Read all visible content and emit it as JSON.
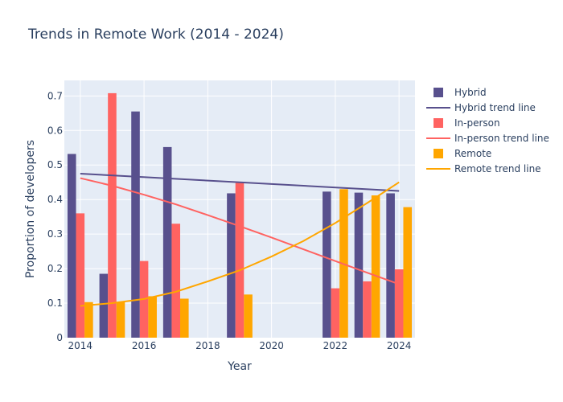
{
  "chart_data": {
    "type": "bar",
    "title": "Trends in Remote Work (2014 - 2024)",
    "xlabel": "Year",
    "ylabel": "Proportion of developers",
    "x": [
      2014,
      2015,
      2016,
      2017,
      2019,
      2022,
      2023,
      2024
    ],
    "xlim": [
      2013.5,
      2024.5
    ],
    "ylim": [
      0,
      0.745
    ],
    "xticks": [
      2014,
      2016,
      2018,
      2020,
      2022,
      2024
    ],
    "yticks": [
      0,
      0.1,
      0.2,
      0.3,
      0.4,
      0.5,
      0.6,
      0.7
    ],
    "grid": true,
    "legend_position": "right",
    "series": [
      {
        "name": "Hybrid",
        "color": "#58508d",
        "values": [
          0.532,
          0.185,
          0.655,
          0.552,
          0.418,
          0.423,
          0.42,
          0.418
        ]
      },
      {
        "name": "In-person",
        "color": "#ff6361",
        "values": [
          0.36,
          0.708,
          0.222,
          0.33,
          0.448,
          0.143,
          0.163,
          0.198
        ]
      },
      {
        "name": "Remote",
        "color": "#ffa600",
        "values": [
          0.103,
          0.103,
          0.12,
          0.113,
          0.125,
          0.43,
          0.412,
          0.378
        ]
      }
    ],
    "trend_lines": [
      {
        "name": "Hybrid trend line",
        "color": "#58508d",
        "x": [
          2014,
          2024
        ],
        "y": [
          0.475,
          0.425
        ]
      },
      {
        "name": "In-person trend line",
        "color": "#ff6361",
        "x": [
          2014,
          2015,
          2016,
          2017,
          2018,
          2019,
          2020,
          2021,
          2022,
          2023,
          2024
        ],
        "y": [
          0.462,
          0.44,
          0.414,
          0.386,
          0.355,
          0.323,
          0.29,
          0.256,
          0.222,
          0.188,
          0.155
        ]
      },
      {
        "name": "Remote trend line",
        "color": "#ffa600",
        "x": [
          2014,
          2015,
          2016,
          2017,
          2018,
          2019,
          2020,
          2021,
          2022,
          2023,
          2024
        ],
        "y": [
          0.092,
          0.1,
          0.112,
          0.133,
          0.163,
          0.195,
          0.235,
          0.28,
          0.332,
          0.39,
          0.45
        ]
      }
    ]
  }
}
